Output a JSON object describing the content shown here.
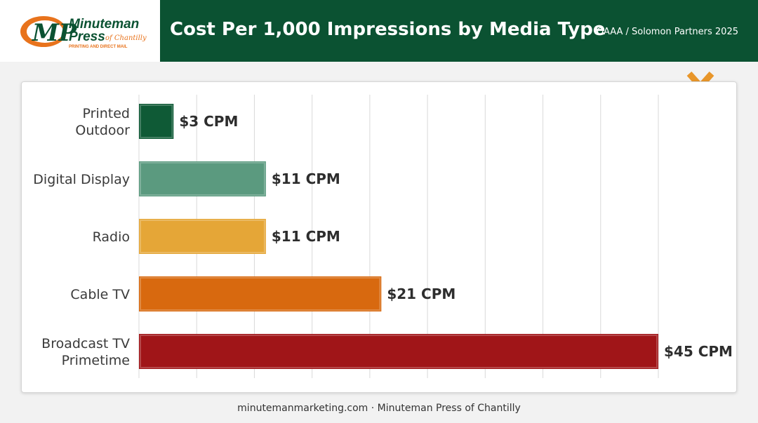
{
  "header": {
    "brand_name_line1": "Minuteman",
    "brand_name_line2": "Press",
    "brand_location": "of Chantilly",
    "brand_tagline": "PRINTING AND DIRECT MAIL",
    "title": "Cost Per 1,000 Impressions by Media Type",
    "source": "OAAA / Solomon Partners 2025"
  },
  "colors": {
    "header_bg": "#0b5232",
    "accent_orange": "#e8962a"
  },
  "chart_data": {
    "type": "bar",
    "orientation": "horizontal",
    "categories": [
      "Printed Outdoor",
      "Digital Display",
      "Radio",
      "Cable TV",
      "Broadcast TV Primetime"
    ],
    "category_lines": [
      [
        "Printed",
        "Outdoor"
      ],
      [
        "Digital Display"
      ],
      [
        "Radio"
      ],
      [
        "Cable TV"
      ],
      [
        "Broadcast TV",
        "Primetime"
      ]
    ],
    "values": [
      3,
      11,
      11,
      21,
      45
    ],
    "value_labels": [
      "$3 CPM",
      "$11 CPM",
      "$11 CPM",
      "$21 CPM",
      "$45 CPM"
    ],
    "colors": [
      "#0f5a36",
      "#5b9a7f",
      "#e5a637",
      "#d8690f",
      "#a01518"
    ],
    "xlim": [
      0,
      45
    ],
    "grid_step": 5,
    "grid": true,
    "legend": false,
    "title": "Cost Per 1,000 Impressions by Media Type",
    "xlabel": "",
    "ylabel": ""
  },
  "footer": {
    "text": "minutemanmarketing.com · Minuteman Press of Chantilly"
  }
}
